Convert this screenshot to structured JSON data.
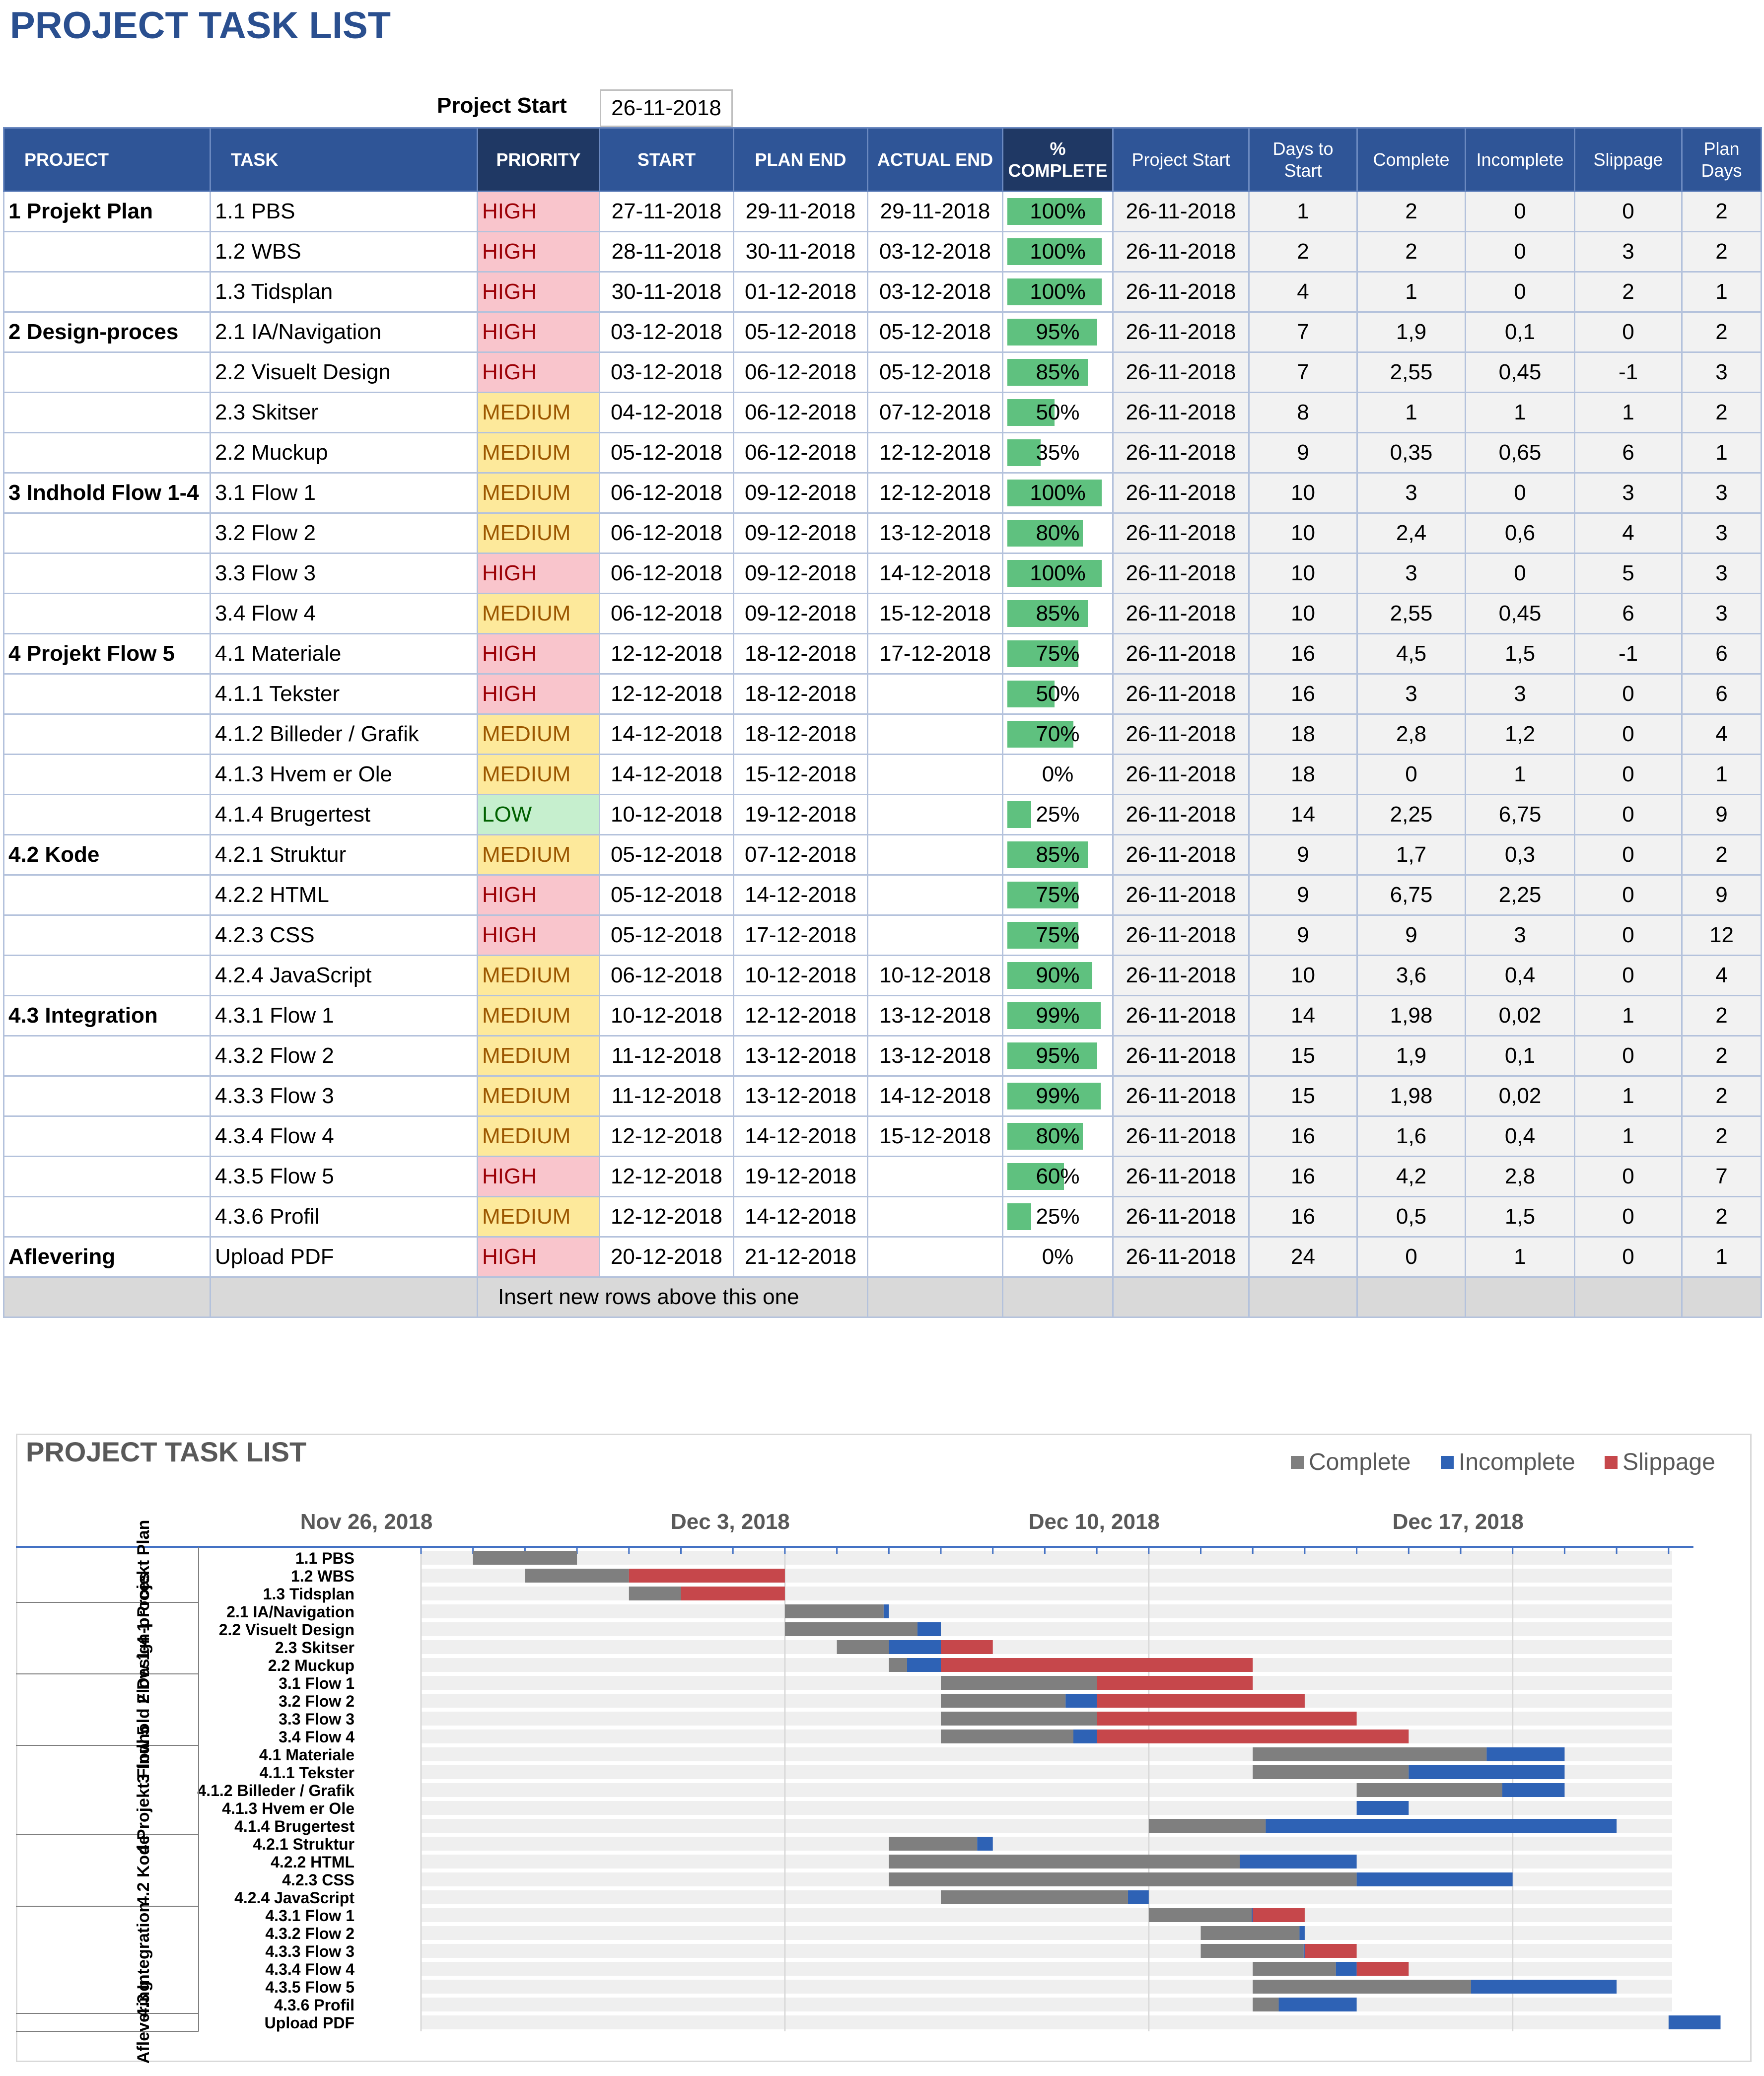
{
  "title": "PROJECT TASK LIST",
  "project_start": {
    "label": "Project Start",
    "value": "26-11-2018"
  },
  "headers": [
    "PROJECT",
    "TASK",
    "PRIORITY",
    "START",
    "PLAN END",
    "ACTUAL END",
    "% COMPLETE",
    "Project Start",
    "Days to Start",
    "Complete",
    "Incomplete",
    "Slippage",
    "Plan Days"
  ],
  "rows": [
    {
      "project": "1 Projekt Plan",
      "task": "1.1 PBS",
      "priority": "HIGH",
      "start": "27-11-2018",
      "plan_end": "29-11-2018",
      "actual_end": "29-11-2018",
      "pct": "100%",
      "pct_val": 1.0,
      "pstart": "26-11-2018",
      "days": "1",
      "complete": "2",
      "incomplete": "0",
      "slippage": "0",
      "plan_days": "2"
    },
    {
      "project": "",
      "task": "1.2 WBS",
      "priority": "HIGH",
      "start": "28-11-2018",
      "plan_end": "30-11-2018",
      "actual_end": "03-12-2018",
      "pct": "100%",
      "pct_val": 1.0,
      "pstart": "26-11-2018",
      "days": "2",
      "complete": "2",
      "incomplete": "0",
      "slippage": "3",
      "plan_days": "2"
    },
    {
      "project": "",
      "task": "1.3 Tidsplan",
      "priority": "HIGH",
      "start": "30-11-2018",
      "plan_end": "01-12-2018",
      "actual_end": "03-12-2018",
      "pct": "100%",
      "pct_val": 1.0,
      "pstart": "26-11-2018",
      "days": "4",
      "complete": "1",
      "incomplete": "0",
      "slippage": "2",
      "plan_days": "1"
    },
    {
      "project": "2 Design-proces",
      "task": "2.1 IA/Navigation",
      "priority": "HIGH",
      "start": "03-12-2018",
      "plan_end": "05-12-2018",
      "actual_end": "05-12-2018",
      "pct": "95%",
      "pct_val": 0.95,
      "pstart": "26-11-2018",
      "days": "7",
      "complete": "1,9",
      "incomplete": "0,1",
      "slippage": "0",
      "plan_days": "2"
    },
    {
      "project": "",
      "task": "2.2 Visuelt Design",
      "priority": "HIGH",
      "start": "03-12-2018",
      "plan_end": "06-12-2018",
      "actual_end": "05-12-2018",
      "pct": "85%",
      "pct_val": 0.85,
      "pstart": "26-11-2018",
      "days": "7",
      "complete": "2,55",
      "incomplete": "0,45",
      "slippage": "-1",
      "plan_days": "3"
    },
    {
      "project": "",
      "task": "2.3 Skitser",
      "priority": "MEDIUM",
      "start": "04-12-2018",
      "plan_end": "06-12-2018",
      "actual_end": "07-12-2018",
      "pct": "50%",
      "pct_val": 0.5,
      "pstart": "26-11-2018",
      "days": "8",
      "complete": "1",
      "incomplete": "1",
      "slippage": "1",
      "plan_days": "2"
    },
    {
      "project": "",
      "task": "2.2 Muckup",
      "priority": "MEDIUM",
      "start": "05-12-2018",
      "plan_end": "06-12-2018",
      "actual_end": "12-12-2018",
      "pct": "35%",
      "pct_val": 0.35,
      "pstart": "26-11-2018",
      "days": "9",
      "complete": "0,35",
      "incomplete": "0,65",
      "slippage": "6",
      "plan_days": "1"
    },
    {
      "project": "3 Indhold Flow 1-4",
      "task": "3.1 Flow 1",
      "priority": "MEDIUM",
      "start": "06-12-2018",
      "plan_end": "09-12-2018",
      "actual_end": "12-12-2018",
      "pct": "100%",
      "pct_val": 1.0,
      "pstart": "26-11-2018",
      "days": "10",
      "complete": "3",
      "incomplete": "0",
      "slippage": "3",
      "plan_days": "3"
    },
    {
      "project": "",
      "task": "3.2 Flow 2",
      "priority": "MEDIUM",
      "start": "06-12-2018",
      "plan_end": "09-12-2018",
      "actual_end": "13-12-2018",
      "pct": "80%",
      "pct_val": 0.8,
      "pstart": "26-11-2018",
      "days": "10",
      "complete": "2,4",
      "incomplete": "0,6",
      "slippage": "4",
      "plan_days": "3"
    },
    {
      "project": "",
      "task": "3.3 Flow 3",
      "priority": "HIGH",
      "start": "06-12-2018",
      "plan_end": "09-12-2018",
      "actual_end": "14-12-2018",
      "pct": "100%",
      "pct_val": 1.0,
      "pstart": "26-11-2018",
      "days": "10",
      "complete": "3",
      "incomplete": "0",
      "slippage": "5",
      "plan_days": "3"
    },
    {
      "project": "",
      "task": "3.4 Flow 4",
      "priority": "MEDIUM",
      "start": "06-12-2018",
      "plan_end": "09-12-2018",
      "actual_end": "15-12-2018",
      "pct": "85%",
      "pct_val": 0.85,
      "pstart": "26-11-2018",
      "days": "10",
      "complete": "2,55",
      "incomplete": "0,45",
      "slippage": "6",
      "plan_days": "3"
    },
    {
      "project": "4 Projekt Flow 5",
      "task": "4.1 Materiale",
      "priority": "HIGH",
      "start": "12-12-2018",
      "plan_end": "18-12-2018",
      "actual_end": "17-12-2018",
      "pct": "75%",
      "pct_val": 0.75,
      "pstart": "26-11-2018",
      "days": "16",
      "complete": "4,5",
      "incomplete": "1,5",
      "slippage": "-1",
      "plan_days": "6"
    },
    {
      "project": "",
      "task": "4.1.1 Tekster",
      "priority": "HIGH",
      "start": "12-12-2018",
      "plan_end": "18-12-2018",
      "actual_end": "",
      "pct": "50%",
      "pct_val": 0.5,
      "pstart": "26-11-2018",
      "days": "16",
      "complete": "3",
      "incomplete": "3",
      "slippage": "0",
      "plan_days": "6"
    },
    {
      "project": "",
      "task": "4.1.2 Billeder / Grafik",
      "priority": "MEDIUM",
      "start": "14-12-2018",
      "plan_end": "18-12-2018",
      "actual_end": "",
      "pct": "70%",
      "pct_val": 0.7,
      "pstart": "26-11-2018",
      "days": "18",
      "complete": "2,8",
      "incomplete": "1,2",
      "slippage": "0",
      "plan_days": "4"
    },
    {
      "project": "",
      "task": "4.1.3 Hvem er Ole",
      "priority": "MEDIUM",
      "start": "14-12-2018",
      "plan_end": "15-12-2018",
      "actual_end": "",
      "pct": "0%",
      "pct_val": 0,
      "pstart": "26-11-2018",
      "days": "18",
      "complete": "0",
      "incomplete": "1",
      "slippage": "0",
      "plan_days": "1"
    },
    {
      "project": "",
      "task": "4.1.4 Brugertest",
      "priority": "LOW",
      "start": "10-12-2018",
      "plan_end": "19-12-2018",
      "actual_end": "",
      "pct": "25%",
      "pct_val": 0.25,
      "pstart": "26-11-2018",
      "days": "14",
      "complete": "2,25",
      "incomplete": "6,75",
      "slippage": "0",
      "plan_days": "9"
    },
    {
      "project": "4.2 Kode",
      "task": "4.2.1 Struktur",
      "priority": "MEDIUM",
      "start": "05-12-2018",
      "plan_end": "07-12-2018",
      "actual_end": "",
      "pct": "85%",
      "pct_val": 0.85,
      "pstart": "26-11-2018",
      "days": "9",
      "complete": "1,7",
      "incomplete": "0,3",
      "slippage": "0",
      "plan_days": "2"
    },
    {
      "project": "",
      "task": "4.2.2 HTML",
      "priority": "HIGH",
      "start": "05-12-2018",
      "plan_end": "14-12-2018",
      "actual_end": "",
      "pct": "75%",
      "pct_val": 0.75,
      "pstart": "26-11-2018",
      "days": "9",
      "complete": "6,75",
      "incomplete": "2,25",
      "slippage": "0",
      "plan_days": "9"
    },
    {
      "project": "",
      "task": "4.2.3 CSS",
      "priority": "HIGH",
      "start": "05-12-2018",
      "plan_end": "17-12-2018",
      "actual_end": "",
      "pct": "75%",
      "pct_val": 0.75,
      "pstart": "26-11-2018",
      "days": "9",
      "complete": "9",
      "incomplete": "3",
      "slippage": "0",
      "plan_days": "12"
    },
    {
      "project": "",
      "task": "4.2.4 JavaScript",
      "priority": "MEDIUM",
      "start": "06-12-2018",
      "plan_end": "10-12-2018",
      "actual_end": "10-12-2018",
      "pct": "90%",
      "pct_val": 0.9,
      "pstart": "26-11-2018",
      "days": "10",
      "complete": "3,6",
      "incomplete": "0,4",
      "slippage": "0",
      "plan_days": "4"
    },
    {
      "project": "4.3 Integration",
      "task": "4.3.1 Flow 1",
      "priority": "MEDIUM",
      "start": "10-12-2018",
      "plan_end": "12-12-2018",
      "actual_end": "13-12-2018",
      "pct": "99%",
      "pct_val": 0.99,
      "pstart": "26-11-2018",
      "days": "14",
      "complete": "1,98",
      "incomplete": "0,02",
      "slippage": "1",
      "plan_days": "2"
    },
    {
      "project": "",
      "task": "4.3.2 Flow 2",
      "priority": "MEDIUM",
      "start": "11-12-2018",
      "plan_end": "13-12-2018",
      "actual_end": "13-12-2018",
      "pct": "95%",
      "pct_val": 0.95,
      "pstart": "26-11-2018",
      "days": "15",
      "complete": "1,9",
      "incomplete": "0,1",
      "slippage": "0",
      "plan_days": "2"
    },
    {
      "project": "",
      "task": "4.3.3 Flow 3",
      "priority": "MEDIUM",
      "start": "11-12-2018",
      "plan_end": "13-12-2018",
      "actual_end": "14-12-2018",
      "pct": "99%",
      "pct_val": 0.99,
      "pstart": "26-11-2018",
      "days": "15",
      "complete": "1,98",
      "incomplete": "0,02",
      "slippage": "1",
      "plan_days": "2"
    },
    {
      "project": "",
      "task": "4.3.4 Flow 4",
      "priority": "MEDIUM",
      "start": "12-12-2018",
      "plan_end": "14-12-2018",
      "actual_end": "15-12-2018",
      "pct": "80%",
      "pct_val": 0.8,
      "pstart": "26-11-2018",
      "days": "16",
      "complete": "1,6",
      "incomplete": "0,4",
      "slippage": "1",
      "plan_days": "2"
    },
    {
      "project": "",
      "task": "4.3.5 Flow 5",
      "priority": "HIGH",
      "start": "12-12-2018",
      "plan_end": "19-12-2018",
      "actual_end": "",
      "pct": "60%",
      "pct_val": 0.6,
      "pstart": "26-11-2018",
      "days": "16",
      "complete": "4,2",
      "incomplete": "2,8",
      "slippage": "0",
      "plan_days": "7"
    },
    {
      "project": "",
      "task": "4.3.6 Profil",
      "priority": "MEDIUM",
      "start": "12-12-2018",
      "plan_end": "14-12-2018",
      "actual_end": "",
      "pct": "25%",
      "pct_val": 0.25,
      "pstart": "26-11-2018",
      "days": "16",
      "complete": "0,5",
      "incomplete": "1,5",
      "slippage": "0",
      "plan_days": "2"
    },
    {
      "project": "Aflevering",
      "task": "Upload PDF",
      "priority": "HIGH",
      "start": "20-12-2018",
      "plan_end": "21-12-2018",
      "actual_end": "",
      "pct": "0%",
      "pct_val": 0,
      "pstart": "26-11-2018",
      "days": "24",
      "complete": "0",
      "incomplete": "1",
      "slippage": "0",
      "plan_days": "1"
    }
  ],
  "insert_row_text": "Insert new rows above this one",
  "colors": {
    "header": "#2f5597",
    "header_dark": "#1f3864",
    "pct_bar": "#5fc17f",
    "complete": "#7f7f7f",
    "incomplete": "#2e62b5",
    "slippage": "#c6474b"
  },
  "chart_data": {
    "type": "bar",
    "orientation": "horizontal-stacked",
    "title": "PROJECT TASK LIST",
    "legend": [
      "Complete",
      "Incomplete",
      "Slippage"
    ],
    "legend_position": "top-right",
    "x_axis_ticks": [
      "Nov 26, 2018",
      "Dec 3, 2018",
      "Dec 10, 2018",
      "Dec 17, 2018"
    ],
    "xlim": [
      "2018-11-26",
      "2018-12-21"
    ],
    "groups": [
      {
        "label": "1 Projekt Plan",
        "tasks": [
          "1.1 PBS",
          "1.2 WBS",
          "1.3 Tidsplan"
        ]
      },
      {
        "label": "2 Design-proces",
        "tasks": [
          "2.1 IA/Navigation",
          "2.2 Visuelt Design",
          "2.3 Skitser",
          "2.2 Muckup"
        ]
      },
      {
        "label": "3 Indhold Flow 1-4",
        "tasks": [
          "3.1 Flow 1",
          "3.2 Flow 2",
          "3.3 Flow 3",
          "3.4 Flow 4"
        ]
      },
      {
        "label": "4 Projekt Flow 5",
        "tasks": [
          "4.1 Materiale",
          "4.1.1 Tekster",
          "4.1.2 Billeder / Grafik",
          "4.1.3 Hvem er Ole",
          "4.1.4 Brugertest"
        ]
      },
      {
        "label": "4.2 Kode",
        "tasks": [
          "4.2.1 Struktur",
          "4.2.2 HTML",
          "4.2.3 CSS",
          "4.2.4 JavaScript"
        ]
      },
      {
        "label": "4.3 Integration",
        "tasks": [
          "4.3.1 Flow 1",
          "4.3.2 Flow 2",
          "4.3.3 Flow 3",
          "4.3.4 Flow 4",
          "4.3.5 Flow 5",
          "4.3.6 Profil"
        ]
      },
      {
        "label": "Aflevering",
        "tasks": [
          "Upload PDF"
        ]
      }
    ],
    "series": [
      {
        "name": "Days to Start",
        "hidden": true,
        "values": [
          1,
          2,
          4,
          7,
          7,
          8,
          9,
          10,
          10,
          10,
          10,
          16,
          16,
          18,
          18,
          14,
          9,
          9,
          9,
          10,
          14,
          15,
          15,
          16,
          16,
          16,
          24
        ]
      },
      {
        "name": "Complete",
        "values": [
          2,
          2,
          1,
          1.9,
          2.55,
          1,
          0.35,
          3,
          2.4,
          3,
          2.55,
          4.5,
          3,
          2.8,
          0,
          2.25,
          1.7,
          6.75,
          9,
          3.6,
          1.98,
          1.9,
          1.98,
          1.6,
          4.2,
          0.5,
          0
        ]
      },
      {
        "name": "Incomplete",
        "values": [
          0,
          0,
          0,
          0.1,
          0.45,
          1,
          0.65,
          0,
          0.6,
          0,
          0.45,
          1.5,
          3,
          1.2,
          1,
          6.75,
          0.3,
          2.25,
          3,
          0.4,
          0.02,
          0.1,
          0.02,
          0.4,
          2.8,
          1.5,
          1
        ]
      },
      {
        "name": "Slippage",
        "values": [
          0,
          3,
          2,
          0,
          -1,
          1,
          6,
          3,
          4,
          5,
          6,
          -1,
          0,
          0,
          0,
          0,
          0,
          0,
          0,
          0,
          1,
          0,
          1,
          1,
          0,
          0,
          0
        ]
      }
    ]
  }
}
